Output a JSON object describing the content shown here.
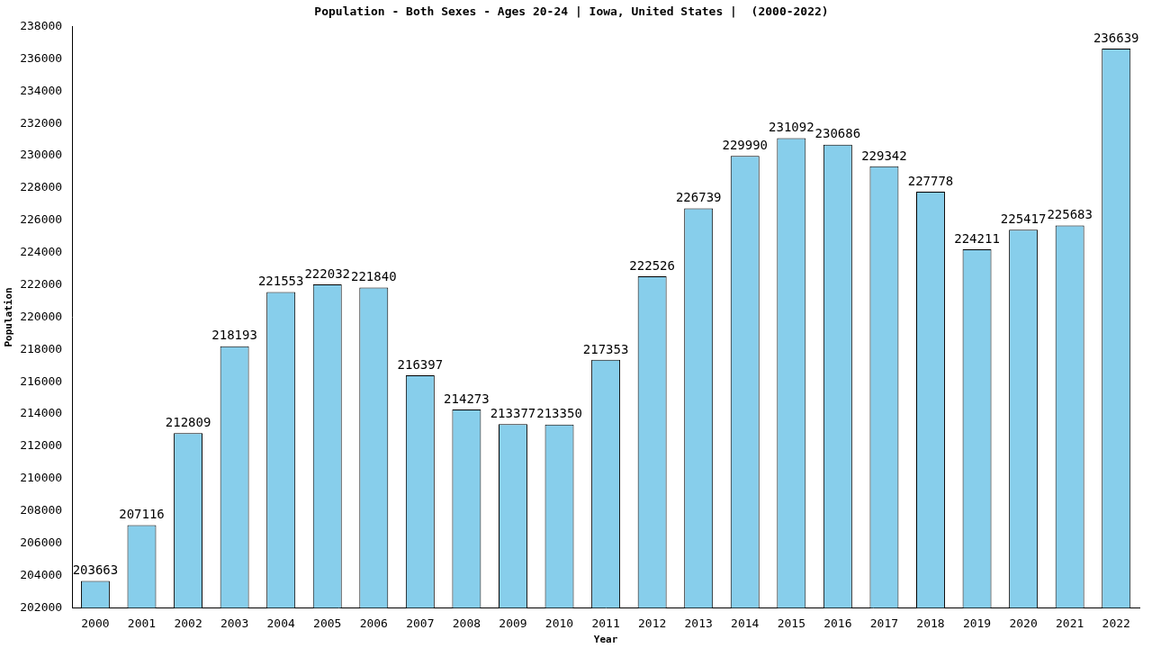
{
  "chart_data": {
    "type": "bar",
    "title": "Population - Both Sexes - Ages 20-24 | Iowa, United States |  (2000-2022)",
    "x_label": "Year",
    "y_label": "Population",
    "categories": [
      "2000",
      "2001",
      "2002",
      "2003",
      "2004",
      "2005",
      "2006",
      "2007",
      "2008",
      "2009",
      "2010",
      "2011",
      "2012",
      "2013",
      "2014",
      "2015",
      "2016",
      "2017",
      "2018",
      "2019",
      "2020",
      "2021",
      "2022"
    ],
    "values": [
      203663,
      207116,
      212809,
      218193,
      221553,
      222032,
      221840,
      216397,
      214273,
      213377,
      213350,
      217353,
      222526,
      226739,
      229990,
      231092,
      230686,
      229342,
      227778,
      224211,
      225417,
      225683,
      236639
    ],
    "color": "#87ceeb",
    "ylim": [
      202000,
      238000
    ],
    "yticks": [
      202000,
      204000,
      206000,
      208000,
      210000,
      212000,
      214000,
      216000,
      218000,
      220000,
      222000,
      224000,
      226000,
      228000,
      230000,
      232000,
      234000,
      236000,
      238000
    ],
    "grid": false,
    "data_labels": true
  }
}
